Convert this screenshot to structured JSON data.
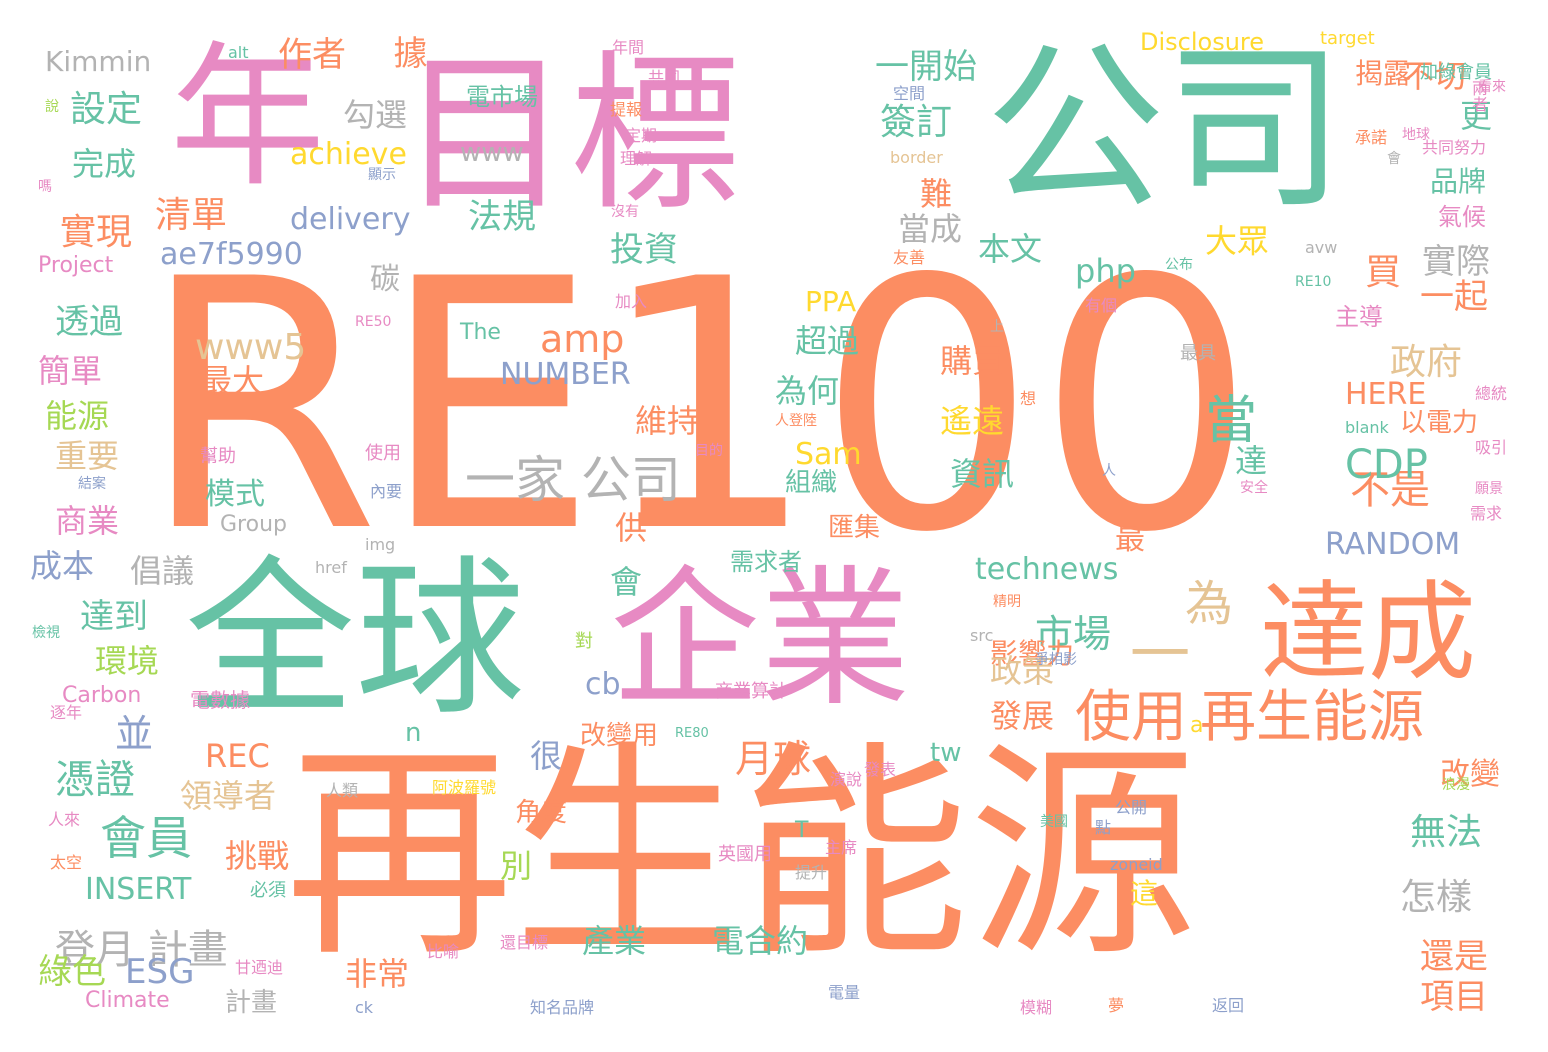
{
  "palette": {
    "orange": "#fc8d62",
    "teal": "#66c2a5",
    "pink": "#e78ac3",
    "green": "#a6d854",
    "blue": "#8da0cb",
    "yellow": "#ffd92f",
    "tan": "#e5c494",
    "gray": "#b3b3b3"
  },
  "words": [
    {
      "text": "RE100",
      "color": "orange"
    },
    {
      "text": "再生能源",
      "color": "orange"
    },
    {
      "text": "公司",
      "color": "teal"
    },
    {
      "text": "目標",
      "color": "pink"
    },
    {
      "text": "年",
      "color": "pink"
    },
    {
      "text": "全球",
      "color": "teal"
    },
    {
      "text": "企業",
      "color": "pink"
    },
    {
      "text": "達成",
      "color": "orange"
    },
    {
      "text": "使用",
      "color": "orange"
    },
    {
      "text": "再生能源",
      "color": "orange"
    },
    {
      "text": "一家 公司",
      "color": "gray"
    },
    {
      "text": "會員",
      "color": "teal"
    },
    {
      "text": "市場",
      "color": "teal"
    },
    {
      "text": "當",
      "color": "teal"
    },
    {
      "text": "為",
      "color": "tan"
    },
    {
      "text": "一",
      "color": "tan"
    },
    {
      "text": "不是",
      "color": "orange"
    },
    {
      "text": "CDP",
      "color": "teal"
    },
    {
      "text": "政府",
      "color": "tan"
    },
    {
      "text": "月球",
      "color": "orange"
    },
    {
      "text": "登月 計畫",
      "color": "gray"
    },
    {
      "text": "憑證",
      "color": "teal"
    },
    {
      "text": "並",
      "color": "blue"
    },
    {
      "text": "ESG",
      "color": "blue"
    },
    {
      "text": "amp",
      "color": "orange"
    },
    {
      "text": "php",
      "color": "teal"
    },
    {
      "text": "www5",
      "color": "tan"
    },
    {
      "text": "delivery",
      "color": "blue"
    },
    {
      "text": "ae7f5990",
      "color": "blue"
    },
    {
      "text": "NUMBER",
      "color": "blue"
    },
    {
      "text": "RANDOM",
      "color": "blue"
    },
    {
      "text": "technews",
      "color": "teal"
    },
    {
      "text": "achieve",
      "color": "yellow"
    },
    {
      "text": "INSERT",
      "color": "teal"
    },
    {
      "text": "Kimmin",
      "color": "gray"
    },
    {
      "text": "Disclosure",
      "color": "yellow"
    },
    {
      "text": "HERE",
      "color": "orange"
    },
    {
      "text": "PPA",
      "color": "yellow"
    },
    {
      "text": "REC",
      "color": "orange"
    },
    {
      "text": "Sam",
      "color": "yellow"
    },
    {
      "text": "www",
      "color": "gray"
    },
    {
      "text": "Group",
      "color": "gray"
    },
    {
      "text": "Carbon",
      "color": "pink"
    },
    {
      "text": "Climate",
      "color": "pink"
    },
    {
      "text": "Project",
      "color": "pink"
    },
    {
      "text": "The",
      "color": "teal"
    },
    {
      "text": "target",
      "color": "yellow"
    },
    {
      "text": "border",
      "color": "tan"
    },
    {
      "text": "blank",
      "color": "teal"
    },
    {
      "text": "avw",
      "color": "gray"
    },
    {
      "text": "href",
      "color": "gray"
    },
    {
      "text": "img",
      "color": "gray"
    },
    {
      "text": "src",
      "color": "gray"
    },
    {
      "text": "zoneid",
      "color": "blue"
    },
    {
      "text": "alt",
      "color": "teal"
    },
    {
      "text": "ck",
      "color": "blue"
    },
    {
      "text": "cb",
      "color": "blue"
    },
    {
      "text": "tw",
      "color": "teal"
    },
    {
      "text": "n",
      "color": "teal"
    },
    {
      "text": "a",
      "color": "yellow"
    },
    {
      "text": "T",
      "color": "teal"
    },
    {
      "text": "RE10",
      "color": "teal"
    },
    {
      "text": "RE50",
      "color": "pink"
    },
    {
      "text": "RE80",
      "color": "teal"
    },
    {
      "text": "作者",
      "color": "orange"
    },
    {
      "text": "據",
      "color": "orange"
    },
    {
      "text": "一開始",
      "color": "teal"
    },
    {
      "text": "揭露",
      "color": "orange"
    },
    {
      "text": "不切",
      "color": "orange"
    },
    {
      "text": "更",
      "color": "teal"
    },
    {
      "text": "設定",
      "color": "teal"
    },
    {
      "text": "勾選",
      "color": "gray"
    },
    {
      "text": "簽訂",
      "color": "teal"
    },
    {
      "text": "完成",
      "color": "teal"
    },
    {
      "text": "清單",
      "color": "orange"
    },
    {
      "text": "實現",
      "color": "orange"
    },
    {
      "text": "法規",
      "color": "teal"
    },
    {
      "text": "投資",
      "color": "teal"
    },
    {
      "text": "當成",
      "color": "gray"
    },
    {
      "text": "難",
      "color": "orange"
    },
    {
      "text": "本文",
      "color": "teal"
    },
    {
      "text": "大眾",
      "color": "yellow"
    },
    {
      "text": "品牌",
      "color": "teal"
    },
    {
      "text": "氣候",
      "color": "pink"
    },
    {
      "text": "買",
      "color": "orange"
    },
    {
      "text": "實際",
      "color": "gray"
    },
    {
      "text": "一起",
      "color": "orange"
    },
    {
      "text": "主導",
      "color": "pink"
    },
    {
      "text": "碳",
      "color": "gray"
    },
    {
      "text": "透過",
      "color": "teal"
    },
    {
      "text": "簡單",
      "color": "pink"
    },
    {
      "text": "能源",
      "color": "green"
    },
    {
      "text": "重要",
      "color": "tan"
    },
    {
      "text": "商業",
      "color": "pink"
    },
    {
      "text": "成本",
      "color": "blue"
    },
    {
      "text": "倡議",
      "color": "gray"
    },
    {
      "text": "達到",
      "color": "teal"
    },
    {
      "text": "環境",
      "color": "green"
    },
    {
      "text": "綠色",
      "color": "green"
    },
    {
      "text": "計畫",
      "color": "gray"
    },
    {
      "text": "最大",
      "color": "orange"
    },
    {
      "text": "模式",
      "color": "teal"
    },
    {
      "text": "超過",
      "color": "teal"
    },
    {
      "text": "為何",
      "color": "teal"
    },
    {
      "text": "組織",
      "color": "teal"
    },
    {
      "text": "購買",
      "color": "orange"
    },
    {
      "text": "遙遠",
      "color": "yellow"
    },
    {
      "text": "資訊",
      "color": "teal"
    },
    {
      "text": "維持",
      "color": "orange"
    },
    {
      "text": "以電力",
      "color": "orange"
    },
    {
      "text": "達",
      "color": "teal"
    },
    {
      "text": "最",
      "color": "orange"
    },
    {
      "text": "供",
      "color": "orange"
    },
    {
      "text": "匯集",
      "color": "orange"
    },
    {
      "text": "會",
      "color": "teal"
    },
    {
      "text": "需求者",
      "color": "teal"
    },
    {
      "text": "影響力",
      "color": "orange"
    },
    {
      "text": "政策",
      "color": "tan"
    },
    {
      "text": "發展",
      "color": "orange"
    },
    {
      "text": "改變用",
      "color": "orange"
    },
    {
      "text": "很",
      "color": "blue"
    },
    {
      "text": "領導者",
      "color": "tan"
    },
    {
      "text": "挑戰",
      "color": "orange"
    },
    {
      "text": "角度",
      "color": "orange"
    },
    {
      "text": "別",
      "color": "green"
    },
    {
      "text": "產業",
      "color": "teal"
    },
    {
      "text": "電合約",
      "color": "teal"
    },
    {
      "text": "非常",
      "color": "orange"
    },
    {
      "text": "這",
      "color": "yellow"
    },
    {
      "text": "怎樣",
      "color": "gray"
    },
    {
      "text": "無法",
      "color": "teal"
    },
    {
      "text": "改變",
      "color": "orange"
    },
    {
      "text": "還是",
      "color": "orange"
    },
    {
      "text": "項目",
      "color": "orange"
    },
    {
      "text": "電市場",
      "color": "teal"
    },
    {
      "text": "加綠會員",
      "color": "teal"
    },
    {
      "text": "共同努力",
      "color": "pink"
    },
    {
      "text": "年間",
      "color": "pink"
    },
    {
      "text": "共同",
      "color": "pink"
    },
    {
      "text": "提報",
      "color": "orange"
    },
    {
      "text": "定期",
      "color": "pink"
    },
    {
      "text": "理解",
      "color": "pink"
    },
    {
      "text": "空間",
      "color": "blue"
    },
    {
      "text": "顯示",
      "color": "blue"
    },
    {
      "text": "承諾",
      "color": "orange"
    },
    {
      "text": "地球",
      "color": "pink"
    },
    {
      "text": "看來",
      "color": "pink"
    },
    {
      "text": "兩者",
      "color": "pink"
    },
    {
      "text": "友善",
      "color": "orange"
    },
    {
      "text": "沒有",
      "color": "pink"
    },
    {
      "text": "公布",
      "color": "teal"
    },
    {
      "text": "有個",
      "color": "pink"
    },
    {
      "text": "加入",
      "color": "pink"
    },
    {
      "text": "最具",
      "color": "gray"
    },
    {
      "text": "總統",
      "color": "pink"
    },
    {
      "text": "吸引",
      "color": "pink"
    },
    {
      "text": "人登陸",
      "color": "orange"
    },
    {
      "text": "使用",
      "color": "pink"
    },
    {
      "text": "幫助",
      "color": "pink"
    },
    {
      "text": "內要",
      "color": "blue"
    },
    {
      "text": "目的",
      "color": "pink"
    },
    {
      "text": "人",
      "color": "blue"
    },
    {
      "text": "安全",
      "color": "pink"
    },
    {
      "text": "願景",
      "color": "pink"
    },
    {
      "text": "需求",
      "color": "pink"
    },
    {
      "text": "結案",
      "color": "blue"
    },
    {
      "text": "精明",
      "color": "orange"
    },
    {
      "text": "爭相影",
      "color": "blue"
    },
    {
      "text": "電數據",
      "color": "pink"
    },
    {
      "text": "商業算計",
      "color": "pink"
    },
    {
      "text": "發表",
      "color": "pink"
    },
    {
      "text": "演說",
      "color": "pink"
    },
    {
      "text": "浪漫",
      "color": "green"
    },
    {
      "text": "人類",
      "color": "gray"
    },
    {
      "text": "阿波羅號",
      "color": "yellow"
    },
    {
      "text": "公開",
      "color": "blue"
    },
    {
      "text": "美國",
      "color": "teal"
    },
    {
      "text": "英國用",
      "color": "pink"
    },
    {
      "text": "主席",
      "color": "pink"
    },
    {
      "text": "提升",
      "color": "gray"
    },
    {
      "text": "點",
      "color": "blue"
    },
    {
      "text": "人來",
      "color": "pink"
    },
    {
      "text": "太空",
      "color": "orange"
    },
    {
      "text": "逐年",
      "color": "pink"
    },
    {
      "text": "檢視",
      "color": "teal"
    },
    {
      "text": "必須",
      "color": "teal"
    },
    {
      "text": "甘迺迪",
      "color": "pink"
    },
    {
      "text": "還目標",
      "color": "pink"
    },
    {
      "text": "比喻",
      "color": "pink"
    },
    {
      "text": "知名品牌",
      "color": "blue"
    },
    {
      "text": "電量",
      "color": "blue"
    },
    {
      "text": "模糊",
      "color": "pink"
    },
    {
      "text": "夢",
      "color": "orange"
    },
    {
      "text": "返回",
      "color": "blue"
    },
    {
      "text": "對",
      "color": "green"
    },
    {
      "text": "上",
      "color": "gray"
    },
    {
      "text": "想",
      "color": "orange"
    },
    {
      "text": "說",
      "color": "green"
    },
    {
      "text": "嗎",
      "color": "pink"
    },
    {
      "text": "會",
      "color": "gray"
    }
  ]
}
